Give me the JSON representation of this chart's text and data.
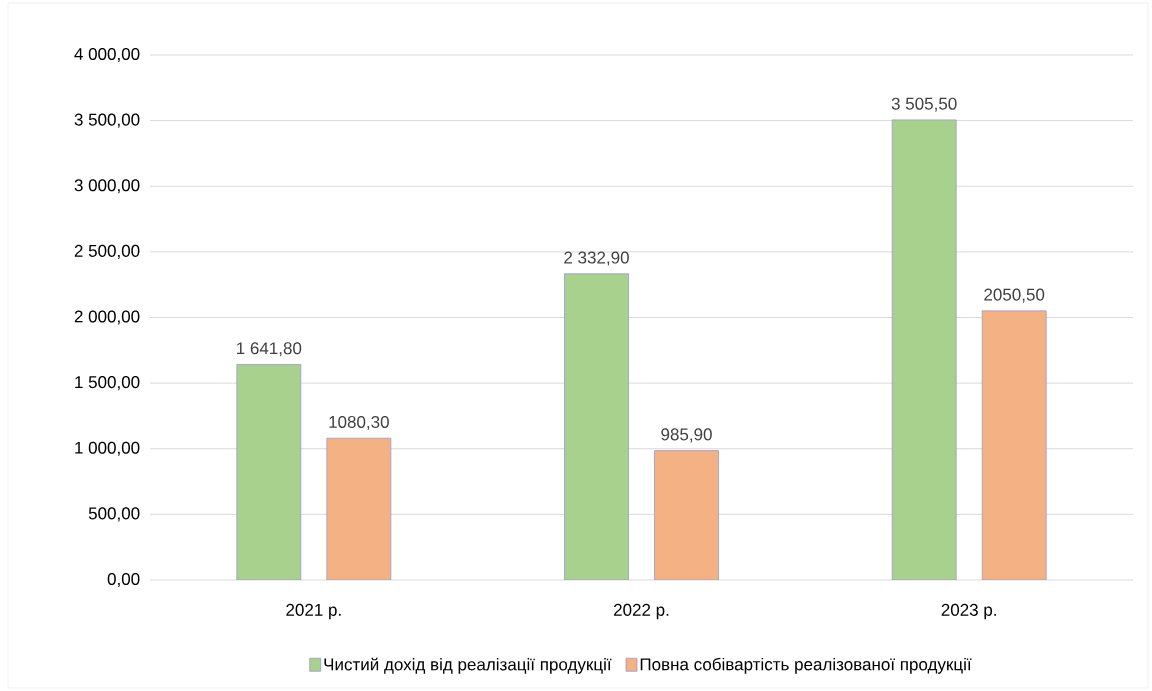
{
  "chart_data": {
    "type": "bar",
    "categories": [
      "2021 р.",
      "2022 р.",
      "2023 р."
    ],
    "series": [
      {
        "name": "Чистий дохід від реалізації продукції",
        "color": "#a9d18e",
        "values": [
          1641.8,
          2332.9,
          3505.5
        ],
        "value_labels": [
          "1 641,80",
          "2 332,90",
          "3 505,50"
        ]
      },
      {
        "name": "Повна собівартість реалізованої продукції",
        "color": "#f4b183",
        "values": [
          1080.3,
          985.9,
          2050.5
        ],
        "value_labels": [
          "1080,30",
          "985,90",
          "2050,50"
        ]
      }
    ],
    "ylim": [
      0,
      4000
    ],
    "yticks": [
      {
        "value": 0,
        "label": "0,00"
      },
      {
        "value": 500,
        "label": "500,00"
      },
      {
        "value": 1000,
        "label": "1 000,00"
      },
      {
        "value": 1500,
        "label": "1 500,00"
      },
      {
        "value": 2000,
        "label": "2 000,00"
      },
      {
        "value": 2500,
        "label": "2 500,00"
      },
      {
        "value": 3000,
        "label": "3 000,00"
      },
      {
        "value": 3500,
        "label": "3 500,00"
      },
      {
        "value": 4000,
        "label": "4 000,00"
      }
    ],
    "grid": "y",
    "legend": "bottom"
  }
}
